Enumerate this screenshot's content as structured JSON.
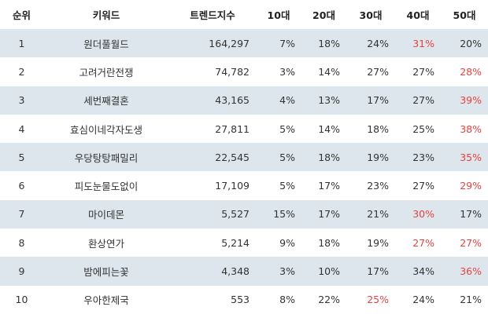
{
  "highlight_color": "#e8413e",
  "table": {
    "header": [
      "순위",
      "키워드",
      "트렌드지수",
      "10대",
      "20대",
      "30대",
      "40대",
      "50대"
    ],
    "rows": [
      [
        "1",
        "원더풀월드",
        "164,297",
        "7%",
        "18%",
        "24%",
        "31%",
        "20%"
      ],
      [
        "2",
        "고려거란전쟁",
        "74,782",
        "3%",
        "14%",
        "27%",
        "27%",
        "28%"
      ],
      [
        "3",
        "세번째결혼",
        "43,165",
        "4%",
        "13%",
        "17%",
        "27%",
        "39%"
      ],
      [
        "4",
        "효심이네각자도생",
        "27,811",
        "5%",
        "14%",
        "18%",
        "25%",
        "38%"
      ],
      [
        "5",
        "우당탕탕패밀리",
        "22,545",
        "5%",
        "18%",
        "19%",
        "23%",
        "35%"
      ],
      [
        "6",
        "피도눈물도없이",
        "17,109",
        "5%",
        "17%",
        "23%",
        "27%",
        "29%"
      ],
      [
        "7",
        "마이데몬",
        "5,527",
        "15%",
        "17%",
        "21%",
        "30%",
        "17%"
      ],
      [
        "8",
        "환상연가",
        "5,214",
        "9%",
        "18%",
        "19%",
        "27%",
        "27%"
      ],
      [
        "9",
        "밤에피는꽃",
        "4,348",
        "3%",
        "10%",
        "17%",
        "34%",
        "36%"
      ],
      [
        "10",
        "우아한제국",
        "553",
        "8%",
        "22%",
        "25%",
        "24%",
        "21%"
      ]
    ]
  }
}
